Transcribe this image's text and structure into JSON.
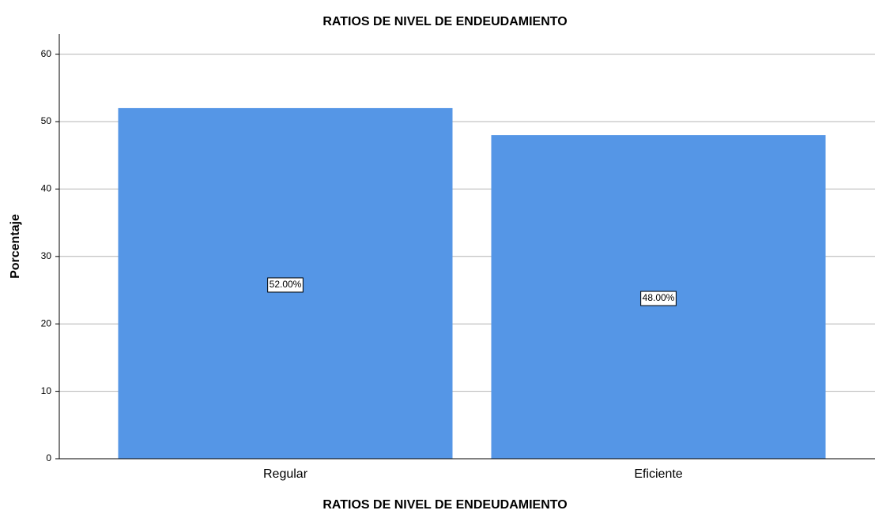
{
  "chart_data": {
    "type": "bar",
    "title": "RATIOS DE NIVEL DE ENDEUDAMIENTO",
    "x_label": "RATIOS DE NIVEL DE ENDEUDAMIENTO",
    "y_label": "Porcentaje",
    "categories": [
      "Regular",
      "Eficiente"
    ],
    "values": [
      52,
      48
    ],
    "value_labels": [
      "52.00%",
      "48.00%"
    ],
    "color": "#5596e6",
    "ylim": [
      0,
      63
    ],
    "yticks": [
      0,
      10,
      20,
      30,
      40,
      50,
      60
    ],
    "grid": true
  }
}
